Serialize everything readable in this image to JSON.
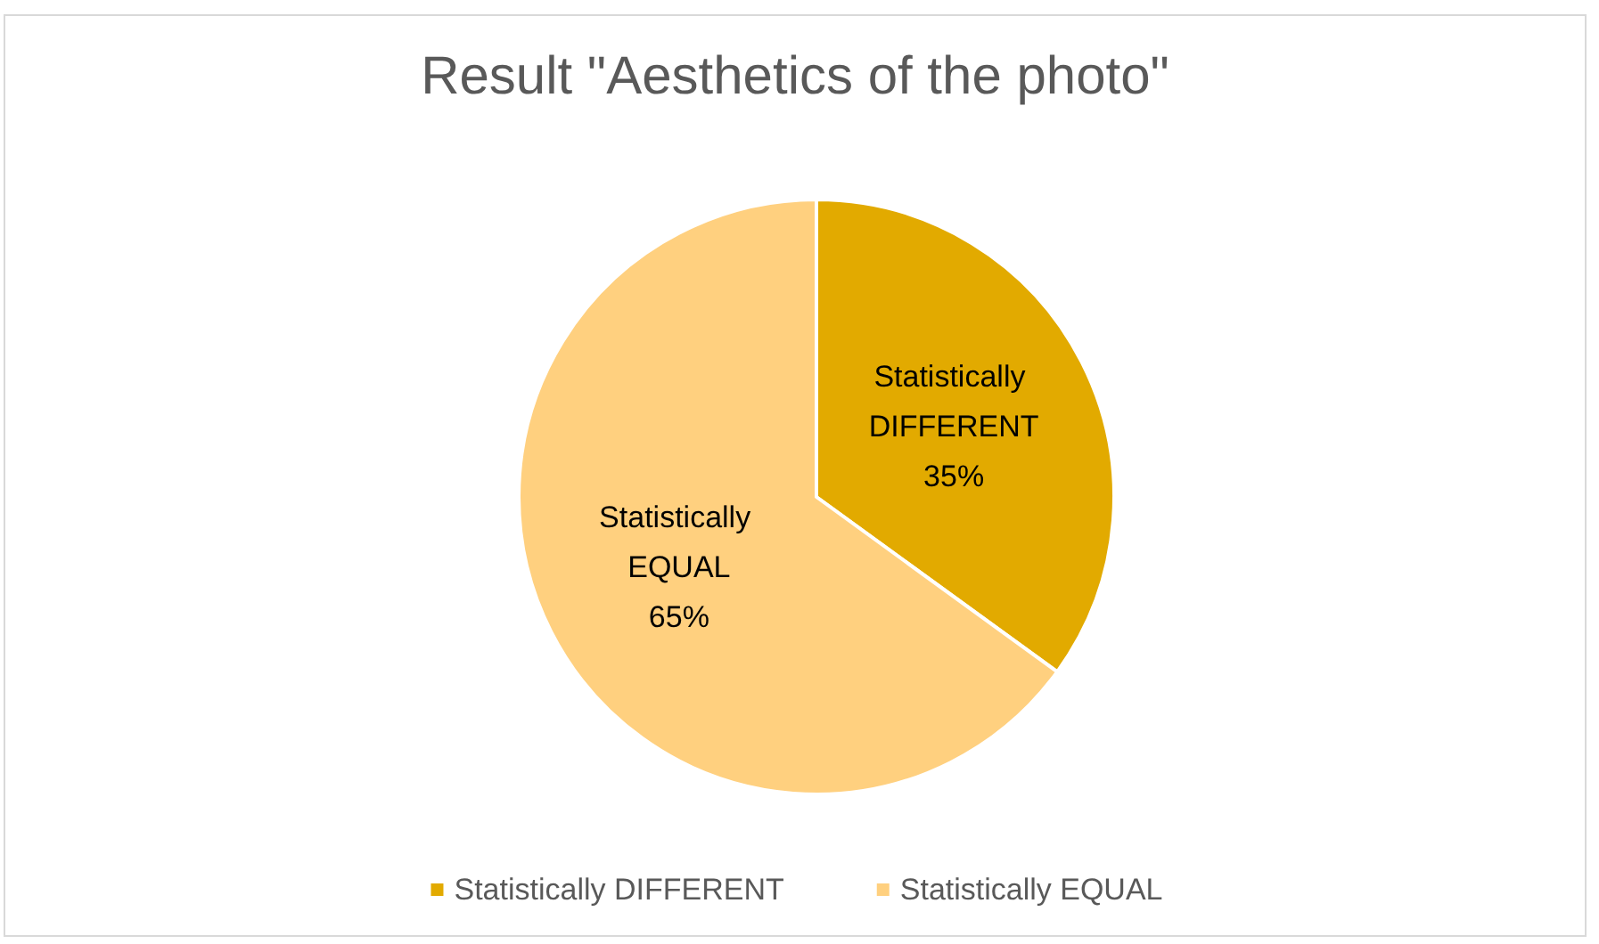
{
  "chart_data": {
    "type": "pie",
    "title": "Result \"Aesthetics of the photo\"",
    "categories": [
      "Statistically DIFFERENT",
      "Statistically EQUAL"
    ],
    "values": [
      35,
      65
    ],
    "value_labels": [
      "35%",
      "65%"
    ],
    "colors": [
      "#e2aa00",
      "#ffd07f"
    ],
    "legend": "bottom"
  }
}
